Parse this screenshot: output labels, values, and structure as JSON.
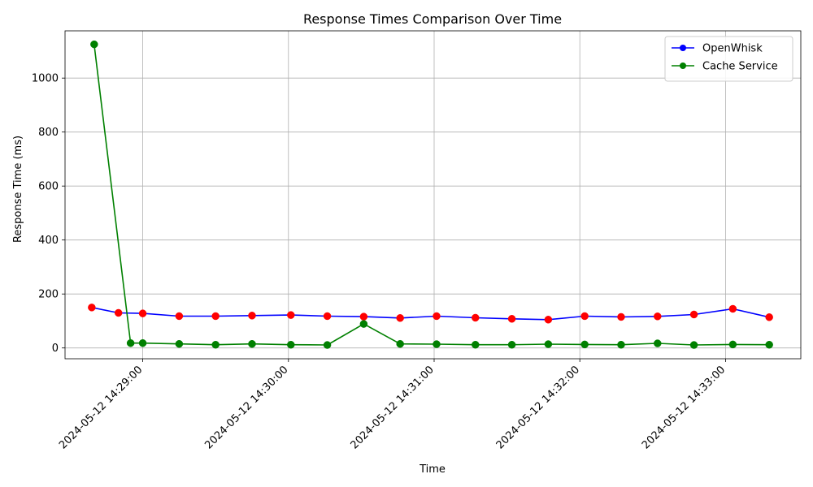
{
  "chart_data": {
    "type": "line",
    "title": "Response Times Comparison Over Time",
    "xlabel": "Time",
    "ylabel": "Response Time (ms)",
    "x_range": [
      "2024-05-12 14:28:28",
      "2024-05-12 14:33:31"
    ],
    "ylim": [
      -40,
      1175
    ],
    "grid": true,
    "legend_position": "top-right",
    "x_ticks": [
      "2024-05-12 14:29:00",
      "2024-05-12 14:30:00",
      "2024-05-12 14:31:00",
      "2024-05-12 14:32:00",
      "2024-05-12 14:33:00"
    ],
    "y_ticks": [
      0,
      200,
      400,
      600,
      800,
      1000
    ],
    "marker_overlay_color": "#ff0000",
    "series": [
      {
        "name": "OpenWhisk",
        "color": "#0000ff",
        "marker_color": "#ff0000",
        "x": [
          "2024-05-12 14:28:39",
          "2024-05-12 14:28:50",
          "2024-05-12 14:29:00",
          "2024-05-12 14:29:15",
          "2024-05-12 14:29:30",
          "2024-05-12 14:29:45",
          "2024-05-12 14:30:01",
          "2024-05-12 14:30:16",
          "2024-05-12 14:30:31",
          "2024-05-12 14:30:46",
          "2024-05-12 14:31:01",
          "2024-05-12 14:31:17",
          "2024-05-12 14:31:32",
          "2024-05-12 14:31:47",
          "2024-05-12 14:32:02",
          "2024-05-12 14:32:17",
          "2024-05-12 14:32:32",
          "2024-05-12 14:32:47",
          "2024-05-12 14:33:03",
          "2024-05-12 14:33:18"
        ],
        "values": [
          150,
          130,
          128,
          118,
          118,
          120,
          122,
          118,
          116,
          111,
          118,
          112,
          108,
          105,
          118,
          115,
          117,
          124,
          145,
          114
        ]
      },
      {
        "name": "Cache Service",
        "color": "#008000",
        "marker_color": "#008000",
        "x": [
          "2024-05-12 14:28:40",
          "2024-05-12 14:28:55",
          "2024-05-12 14:29:00",
          "2024-05-12 14:29:15",
          "2024-05-12 14:29:30",
          "2024-05-12 14:29:45",
          "2024-05-12 14:30:01",
          "2024-05-12 14:30:16",
          "2024-05-12 14:30:31",
          "2024-05-12 14:30:46",
          "2024-05-12 14:31:01",
          "2024-05-12 14:31:17",
          "2024-05-12 14:31:32",
          "2024-05-12 14:31:47",
          "2024-05-12 14:32:02",
          "2024-05-12 14:32:17",
          "2024-05-12 14:32:32",
          "2024-05-12 14:32:47",
          "2024-05-12 14:33:03",
          "2024-05-12 14:33:18"
        ],
        "values": [
          1125,
          18,
          18,
          15,
          12,
          15,
          12,
          11,
          89,
          15,
          14,
          12,
          12,
          14,
          13,
          12,
          17,
          11,
          13,
          12
        ]
      }
    ]
  }
}
